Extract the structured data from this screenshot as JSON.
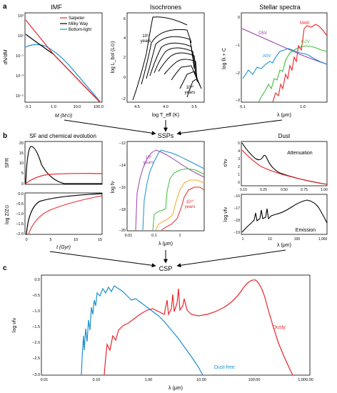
{
  "panel_letters": {
    "a": "a",
    "b": "b",
    "c": "c"
  },
  "imf": {
    "title": "IMF",
    "ylabel": "dN/dM",
    "xlabel": "M (M⊙)",
    "legend": [
      "Salpeter",
      "Milky Way",
      "Bottom-light"
    ],
    "xticks": [
      "0.1",
      "1.0",
      "10.0",
      "100.0"
    ],
    "yticks": [
      "10³",
      "10¹",
      "10⁻¹",
      "10⁻³",
      "10⁻⁵"
    ],
    "colors": {
      "salpeter": "#e8262b",
      "milkyway": "#000000",
      "bottomlight": "#1a8fd0"
    }
  },
  "isochrones": {
    "title": "Isochrones",
    "ylabel": "log L_bol (L⊙)",
    "xlabel": "log T_eff (K)",
    "label_young": "10⁶\nyears",
    "label_old": "10¹⁰\nyears",
    "xticks": [
      "4.5",
      "4.0",
      "3.5"
    ],
    "yticks": [
      "6",
      "4",
      "2",
      "0",
      "−2"
    ]
  },
  "spectra": {
    "title": "Stellar spectra",
    "ylabel": "log fλ + C",
    "xlabel": "λ (μm)",
    "labels": [
      "O5V",
      "A0V",
      "G2V",
      "M4III"
    ],
    "xticks": [
      "0.1",
      "1.0"
    ],
    "yticks": [
      "0",
      "−1",
      "−2",
      "−3"
    ],
    "colors": {
      "o5v": "#9b3fa8",
      "a0v": "#1a8fd0",
      "g2v": "#3bbd3b",
      "m4iii": "#e8262b"
    }
  },
  "sf": {
    "title": "SF and chemical evolution",
    "sfr_label": "SFR",
    "z_label": "log Z/Z⊙",
    "xlabel": "t (Gyr)",
    "sfr_yticks": [
      "20",
      "15",
      "10",
      "5",
      "0"
    ],
    "z_yticks": [
      "0.0",
      "−0.5",
      "−1.0",
      "−1.5",
      "−2.0"
    ],
    "xticks": [
      "0",
      "5",
      "10",
      "15"
    ]
  },
  "ssps": {
    "title": "SSPs",
    "ylabel": "log fν",
    "xlabel": "λ (μm)",
    "label_young": "10⁶\nyears",
    "label_old": "10¹⁰\nyears",
    "yticks": [
      "−12",
      "−14",
      "−16",
      "−18",
      "−20"
    ],
    "xticks": [
      "0.01",
      "0.1",
      "1"
    ]
  },
  "dust": {
    "title": "Dust",
    "atten_ylabel": "τ/τv",
    "atten_label": "Attenuation",
    "atten_yticks": [
      "5",
      "4",
      "3",
      "2",
      "1",
      "0"
    ],
    "atten_xticks": [
      "0.10",
      "0.25",
      "0.50",
      "0.75",
      "1.00"
    ],
    "em_ylabel": "log νfν",
    "em_label": "Emission",
    "em_yticks": [
      "−16",
      "−17",
      "−18",
      "−19"
    ],
    "em_xticks": [
      "1",
      "10",
      "100",
      "1,000"
    ],
    "xlabel": "λ (μm)"
  },
  "csp": {
    "title": "CSP",
    "ylabel": "log νfν",
    "xlabel": "λ (μm)",
    "label_dustfree": "Dust-free",
    "label_dusty": "Dusty",
    "yticks": [
      "0.0",
      "−0.5",
      "−1.0",
      "−1.5",
      "−2.0",
      "−2.5",
      "−3.0"
    ],
    "xticks": [
      "0.01",
      "0.10",
      "1.00",
      "10.00",
      "100.00",
      "1,000.00"
    ]
  }
}
